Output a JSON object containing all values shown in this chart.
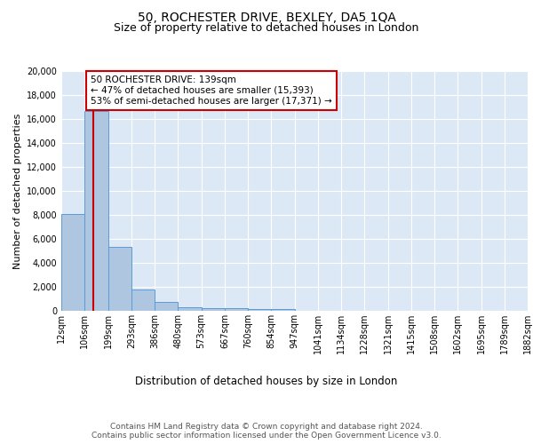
{
  "title1": "50, ROCHESTER DRIVE, BEXLEY, DA5 1QA",
  "title2": "Size of property relative to detached houses in London",
  "xlabel": "Distribution of detached houses by size in London",
  "ylabel": "Number of detached properties",
  "bin_labels": [
    "12sqm",
    "106sqm",
    "199sqm",
    "293sqm",
    "386sqm",
    "480sqm",
    "573sqm",
    "667sqm",
    "760sqm",
    "854sqm",
    "947sqm",
    "1041sqm",
    "1134sqm",
    "1228sqm",
    "1321sqm",
    "1415sqm",
    "1508sqm",
    "1602sqm",
    "1695sqm",
    "1789sqm",
    "1882sqm"
  ],
  "bin_edges": [
    12,
    106,
    199,
    293,
    386,
    480,
    573,
    667,
    760,
    854,
    947,
    1041,
    1134,
    1228,
    1321,
    1415,
    1508,
    1602,
    1695,
    1789,
    1882
  ],
  "bar_heights": [
    8100,
    16700,
    5300,
    1750,
    750,
    330,
    230,
    200,
    175,
    130,
    0,
    0,
    0,
    0,
    0,
    0,
    0,
    0,
    0,
    0
  ],
  "bar_color": "#aec6df",
  "bar_edge_color": "#5b9bd5",
  "vline_x": 139,
  "vline_color": "#cc0000",
  "annotation_text": "50 ROCHESTER DRIVE: 139sqm\n← 47% of detached houses are smaller (15,393)\n53% of semi-detached houses are larger (17,371) →",
  "annotation_box_color": "#ffffff",
  "annotation_box_edge": "#cc0000",
  "ylim": [
    0,
    20000
  ],
  "yticks": [
    0,
    2000,
    4000,
    6000,
    8000,
    10000,
    12000,
    14000,
    16000,
    18000,
    20000
  ],
  "background_color": "#dce8f5",
  "footer_text": "Contains HM Land Registry data © Crown copyright and database right 2024.\nContains public sector information licensed under the Open Government Licence v3.0.",
  "title1_fontsize": 10,
  "title2_fontsize": 9,
  "xlabel_fontsize": 8.5,
  "ylabel_fontsize": 8,
  "tick_fontsize": 7,
  "annotation_fontsize": 7.5,
  "footer_fontsize": 6.5
}
